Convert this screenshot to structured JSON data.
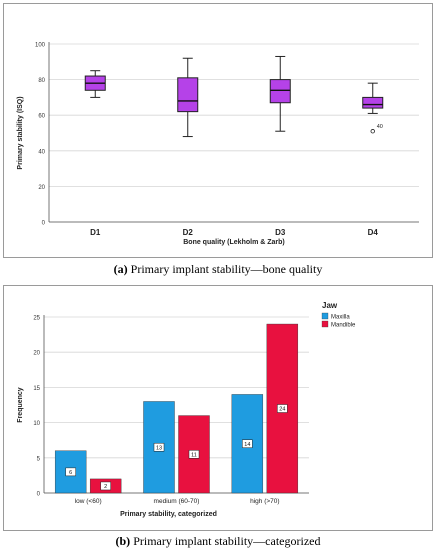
{
  "chart_data": [
    {
      "type": "box",
      "ylabel": "Primary stability (ISQ)",
      "xlabel": "Bone quality (Lekholm & Zarb)",
      "ylim": [
        0,
        100
      ],
      "yticks": [
        0,
        20,
        40,
        60,
        80,
        100
      ],
      "grid": true,
      "color": "#b542e8",
      "categories": [
        "D1",
        "D2",
        "D3",
        "D4"
      ],
      "boxes": [
        {
          "category": "D1",
          "min": 70,
          "q1": 74,
          "median": 78,
          "q3": 82,
          "max": 85
        },
        {
          "category": "D2",
          "min": 48,
          "q1": 62,
          "median": 68,
          "q3": 81,
          "max": 92
        },
        {
          "category": "D3",
          "min": 51,
          "q1": 67,
          "median": 74,
          "q3": 80,
          "max": 93
        },
        {
          "category": "D4",
          "min": 61,
          "q1": 64,
          "median": 66,
          "q3": 70,
          "max": 78
        }
      ],
      "outliers": [
        {
          "category": "D4",
          "value": 51,
          "label": "40"
        }
      ]
    },
    {
      "type": "bar",
      "ylabel": "Frequency",
      "xlabel": "Primary stability, categorized",
      "ylim": [
        0,
        25
      ],
      "yticks": [
        0,
        5,
        10,
        15,
        20,
        25
      ],
      "grid": true,
      "legend_title": "Jaw",
      "legend_position": "top-right",
      "categories": [
        "low (<60)",
        "medium (60-70)",
        "high (>70)"
      ],
      "series": [
        {
          "name": "Maxilla",
          "color": "#1f9ce0",
          "values": [
            6,
            13,
            14
          ],
          "labels": [
            "6",
            "13",
            "14"
          ]
        },
        {
          "name": "Mandible",
          "color": "#e8113f",
          "values": [
            2,
            11,
            24
          ],
          "labels": [
            "2",
            "11",
            "24"
          ]
        }
      ]
    }
  ],
  "captions": {
    "a": {
      "letter": "(a)",
      "text": " Primary implant stability—bone quality"
    },
    "b": {
      "letter": "(b)",
      "text": " Primary implant stability—categorized"
    }
  }
}
